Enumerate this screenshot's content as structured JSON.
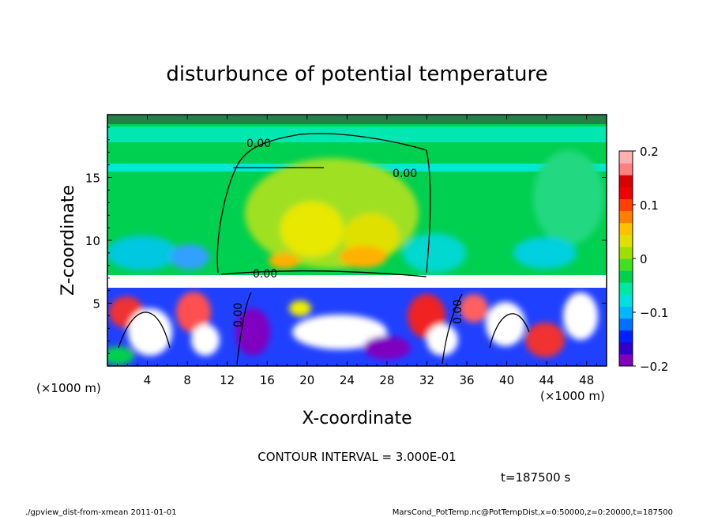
{
  "chart_data": {
    "type": "heatmap",
    "title": "disturbunce of potential temperature",
    "xlabel": "X-coordinate",
    "ylabel": "Z-coordinate",
    "x_unit_left": "(×1000 m)",
    "x_unit_right": "(×1000 m)",
    "xlim": [
      0,
      50
    ],
    "ylim": [
      0,
      20
    ],
    "xticks": [
      4,
      8,
      12,
      16,
      20,
      24,
      28,
      32,
      36,
      40,
      44,
      48
    ],
    "yticks": [
      5,
      10,
      15
    ],
    "colorbar": {
      "ticks": [
        0.2,
        0.1,
        0,
        -0.1,
        -0.2
      ],
      "tick_labels": [
        "0.2",
        "0.1",
        "0",
        "−0.1",
        "−0.2"
      ],
      "range": [
        -0.2,
        0.2
      ],
      "colors": [
        "#8000c0",
        "#3000c8",
        "#0020ff",
        "#0070ff",
        "#00b8ff",
        "#00e0e0",
        "#00e8a0",
        "#00d050",
        "#40e020",
        "#a0e000",
        "#e0e000",
        "#ffc000",
        "#ff8000",
        "#ff4000",
        "#f00000",
        "#d80000",
        "#ff8080",
        "#ffb0b0"
      ]
    },
    "contour_labels": [
      "0.00",
      "0.00",
      "0.00",
      "0.00",
      "0.00"
    ],
    "contour_interval_label": "CONTOUR INTERVAL = 3.000E-01",
    "time_label": "t=187500  s"
  },
  "footer": {
    "left": "./gpview_dist-from-xmean  2011-01-01",
    "right": "MarsCond_PotTemp.nc@PotTempDist,x=0:50000,z=0:20000,t=187500"
  }
}
